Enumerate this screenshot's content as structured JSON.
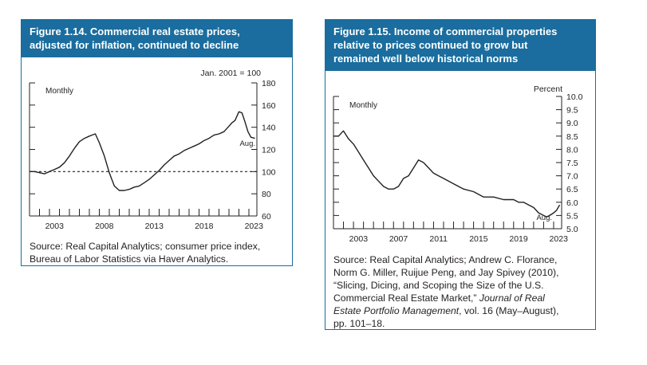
{
  "figures": [
    {
      "title_lines": [
        "Figure 1.14. Commercial real estate prices,",
        "adjusted for inflation, continued to decline"
      ],
      "source_lines": [
        "Source: Real Capital Analytics; consumer price index,",
        "Bureau of Labor Statistics via Haver Analytics."
      ],
      "frequency_label": "Monthly",
      "unit_label": "Jan. 2001 = 100",
      "end_label": "Aug."
    },
    {
      "title_lines": [
        "Figure 1.15. Income of commercial properties",
        "relative to prices continued to grow but",
        "remained well below historical norms"
      ],
      "source_lines": [
        "Source: Real Capital Analytics; Andrew C. Florance,",
        "Norm G. Miller, Ruijue Peng, and Jay Spivey (2010),",
        "“Slicing, Dicing, and Scoping the Size of the U.S.",
        "Commercial Real Estate Market,” Journal of Real",
        "Estate Portfolio Management, vol. 16 (May–August),",
        "pp. 101–18."
      ],
      "frequency_label": "Monthly",
      "unit_label": "Percent",
      "end_label": "Aug."
    }
  ],
  "chart_data": [
    {
      "type": "line",
      "title": "Commercial real estate prices, adjusted for inflation, continued to decline",
      "ylabel": "Jan. 2001 = 100",
      "ylim": [
        60,
        180
      ],
      "y_ticks": [
        60,
        80,
        100,
        120,
        140,
        160,
        180
      ],
      "xlim": [
        2001,
        2023.8
      ],
      "x_tick_labels": [
        "2003",
        "2008",
        "2013",
        "2018",
        "2023"
      ],
      "x_tick_label_values": [
        2003,
        2008,
        2013,
        2018,
        2023
      ],
      "reference_line": {
        "y": 100,
        "style": "dashed"
      },
      "grid": false,
      "series": [
        {
          "x": [
            2001.0,
            2001.5,
            2002.0,
            2002.5,
            2003.0,
            2003.5,
            2004.0,
            2004.5,
            2005.0,
            2005.5,
            2006.0,
            2006.5,
            2007.0,
            2007.3,
            2007.6,
            2008.0,
            2008.5,
            2009.0,
            2009.5,
            2010.0,
            2010.5,
            2011.0,
            2011.5,
            2012.0,
            2012.5,
            2013.0,
            2013.5,
            2014.0,
            2014.5,
            2015.0,
            2015.5,
            2016.0,
            2016.5,
            2017.0,
            2017.5,
            2018.0,
            2018.5,
            2019.0,
            2019.5,
            2020.0,
            2020.5,
            2021.0,
            2021.3,
            2021.6,
            2022.0,
            2022.3,
            2022.6,
            2022.9,
            2023.2,
            2023.6
          ],
          "values": [
            100,
            100,
            99,
            98,
            100,
            102,
            104,
            108,
            114,
            121,
            127,
            130,
            132,
            133,
            134,
            126,
            114,
            99,
            87,
            83,
            83,
            84,
            86,
            87,
            90,
            93,
            97,
            101,
            106,
            110,
            114,
            116,
            119,
            121,
            123,
            125,
            128,
            130,
            133,
            134,
            136,
            141,
            144,
            146,
            154,
            153,
            145,
            136,
            131,
            130
          ]
        }
      ]
    },
    {
      "type": "line",
      "title": "Income of commercial properties relative to prices continued to grow but remained well below historical norms",
      "ylabel": "Percent",
      "ylim": [
        5.0,
        10.0
      ],
      "y_ticks": [
        5.0,
        5.5,
        6.0,
        6.5,
        7.0,
        7.5,
        8.0,
        8.5,
        9.0,
        9.5,
        10.0
      ],
      "xlim": [
        2001,
        2023.8
      ],
      "x_tick_labels": [
        "2003",
        "2007",
        "2011",
        "2015",
        "2019",
        "2023"
      ],
      "x_tick_label_values": [
        2003,
        2007,
        2011,
        2015,
        2019,
        2023
      ],
      "grid": false,
      "series": [
        {
          "x": [
            2001.0,
            2001.5,
            2002.0,
            2002.5,
            2003.0,
            2003.5,
            2004.0,
            2004.5,
            2005.0,
            2005.5,
            2006.0,
            2006.5,
            2007.0,
            2007.5,
            2008.0,
            2008.5,
            2009.0,
            2009.5,
            2010.0,
            2010.5,
            2011.0,
            2011.5,
            2012.0,
            2013.0,
            2014.0,
            2015.0,
            2016.0,
            2017.0,
            2018.0,
            2019.0,
            2019.5,
            2020.0,
            2020.5,
            2021.0,
            2021.5,
            2022.0,
            2022.3,
            2022.6,
            2023.0,
            2023.3,
            2023.6
          ],
          "values": [
            8.5,
            8.5,
            8.7,
            8.4,
            8.2,
            7.9,
            7.6,
            7.3,
            7.0,
            6.8,
            6.6,
            6.5,
            6.5,
            6.6,
            6.9,
            7.0,
            7.3,
            7.6,
            7.5,
            7.3,
            7.1,
            7.0,
            6.9,
            6.7,
            6.5,
            6.4,
            6.2,
            6.2,
            6.1,
            6.1,
            6.0,
            6.0,
            5.9,
            5.8,
            5.6,
            5.5,
            5.45,
            5.5,
            5.6,
            5.7,
            5.9
          ]
        }
      ]
    }
  ]
}
